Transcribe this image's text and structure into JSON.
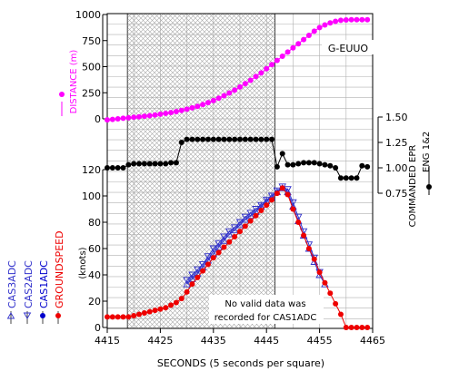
{
  "chart_data": {
    "type": "line",
    "aircraft_label": "G-EUUO",
    "annotation": [
      "No valid data was",
      "recorded for CAS1ADC"
    ],
    "xlabel": "SECONDS (5 seconds per square)",
    "xlim": [
      4415,
      4465
    ],
    "x_ticks": [
      4415,
      4425,
      4435,
      4445,
      4455,
      4465
    ],
    "shaded_interval": [
      4418.8,
      4446.6
    ],
    "legend_order": [
      "CAS3ADC",
      "CAS2ADC",
      "CAS1ADC",
      "GROUNDSPEED"
    ],
    "colors": {
      "distance": "#ff00ff",
      "epr": "#000000",
      "cas3": "#3333cc",
      "cas2": "#3333cc",
      "cas1": "#0000cc",
      "groundspeed": "#ee0000"
    },
    "panels": {
      "distance": {
        "ylabel": "DISTANCE (m)",
        "ylim": [
          0,
          1000
        ],
        "y_ticks": [
          0,
          250,
          500,
          750,
          1000
        ],
        "series": [
          {
            "name": "DISTANCE",
            "x": [
              4415,
              4416,
              4417,
              4418,
              4419,
              4420,
              4421,
              4422,
              4423,
              4424,
              4425,
              4426,
              4427,
              4428,
              4429,
              4430,
              4431,
              4432,
              4433,
              4434,
              4435,
              4436,
              4437,
              4438,
              4439,
              4440,
              4441,
              4442,
              4443,
              4444,
              4445,
              4446,
              4447,
              4448,
              4449,
              4450,
              4451,
              4452,
              4453,
              4454,
              4455,
              4456,
              4457,
              4458,
              4459,
              4460,
              4461,
              4462,
              4463,
              4464
            ],
            "values": [
              -10,
              -5,
              0,
              5,
              10,
              15,
              20,
              25,
              30,
              37,
              45,
              52,
              60,
              70,
              80,
              92,
              105,
              120,
              137,
              155,
              175,
              198,
              222,
              248,
              275,
              305,
              337,
              370,
              405,
              440,
              480,
              520,
              560,
              600,
              640,
              680,
              720,
              760,
              800,
              840,
              875,
              900,
              920,
              935,
              945,
              948,
              950,
              950,
              950,
              950
            ]
          }
        ]
      },
      "epr": {
        "ylabel": "COMMANDED EPR",
        "ylabel2": "ENG 1&2",
        "ylim": [
          0.75,
          1.5
        ],
        "y_ticks": [
          0.75,
          1.0,
          1.25,
          1.5
        ],
        "y_tick_labels": [
          "0.75",
          "1.00",
          "1.25",
          "1.50"
        ],
        "series": [
          {
            "name": "ENG 1&2",
            "x": [
              4415,
              4416,
              4417,
              4418,
              4419,
              4420,
              4421,
              4422,
              4423,
              4424,
              4425,
              4426,
              4427,
              4428,
              4429,
              4430,
              4431,
              4432,
              4433,
              4434,
              4435,
              4436,
              4437,
              4438,
              4439,
              4440,
              4441,
              4442,
              4443,
              4444,
              4445,
              4446,
              4447,
              4448,
              4449,
              4450,
              4451,
              4452,
              4453,
              4454,
              4455,
              4456,
              4457,
              4458,
              4459,
              4460,
              4461,
              4462,
              4463,
              4464
            ],
            "values": [
              1.0,
              1.0,
              1.0,
              1.0,
              1.03,
              1.04,
              1.04,
              1.04,
              1.04,
              1.04,
              1.04,
              1.04,
              1.05,
              1.05,
              1.25,
              1.28,
              1.28,
              1.28,
              1.28,
              1.28,
              1.28,
              1.28,
              1.28,
              1.28,
              1.28,
              1.28,
              1.28,
              1.28,
              1.28,
              1.28,
              1.28,
              1.28,
              1.01,
              1.14,
              1.03,
              1.03,
              1.04,
              1.05,
              1.05,
              1.05,
              1.04,
              1.03,
              1.02,
              1.0,
              0.9,
              0.9,
              0.9,
              0.9,
              1.02,
              1.01
            ]
          }
        ]
      },
      "speed": {
        "ylabel": "(knots)",
        "ylim": [
          0,
          120
        ],
        "y_ticks": [
          0,
          20,
          40,
          60,
          80,
          100,
          120
        ],
        "series": [
          {
            "name": "GROUNDSPEED",
            "x": [
              4415,
              4416,
              4417,
              4418,
              4419,
              4420,
              4421,
              4422,
              4423,
              4424,
              4425,
              4426,
              4427,
              4428,
              4429,
              4430,
              4431,
              4432,
              4433,
              4434,
              4435,
              4436,
              4437,
              4438,
              4439,
              4440,
              4441,
              4442,
              4443,
              4444,
              4445,
              4446,
              4447,
              4448,
              4449,
              4450,
              4451,
              4452,
              4453,
              4454,
              4455,
              4456,
              4457,
              4458,
              4459,
              4460,
              4461,
              4462,
              4463,
              4464
            ],
            "values": [
              8,
              8,
              8,
              8,
              8,
              9,
              10,
              11,
              12,
              13,
              14,
              15,
              17,
              19,
              22,
              27,
              33,
              38,
              43,
              48,
              53,
              57,
              61,
              65,
              69,
              73,
              77,
              81,
              85,
              89,
              93,
              97,
              102,
              106,
              101,
              90,
              80,
              70,
              60,
              52,
              42,
              34,
              26,
              18,
              10,
              0,
              0,
              0,
              0,
              0
            ]
          },
          {
            "name": "CAS2ADC",
            "x": [
              4430,
              4431,
              4432,
              4433,
              4434,
              4435,
              4436,
              4437,
              4438,
              4439,
              4440,
              4441,
              4442,
              4443,
              4444,
              4445,
              4446,
              4447,
              4448,
              4449,
              4450,
              4451,
              4452,
              4453,
              4454,
              4455
            ],
            "values": [
              36,
              40,
              44,
              48,
              54,
              60,
              64,
              69,
              73,
              76,
              80,
              84,
              87,
              90,
              93,
              97,
              100,
              104,
              107,
              105,
              95,
              84,
              73,
              63,
              53,
              42
            ]
          },
          {
            "name": "CAS3ADC",
            "x": [
              4430,
              4431,
              4432,
              4433,
              4434,
              4435,
              4436,
              4437,
              4438,
              4439,
              4440,
              4441,
              4442,
              4443,
              4444,
              4445,
              4446,
              4447,
              4448,
              4449,
              4450,
              4451,
              4452,
              4453,
              4454,
              4455,
              4456
            ],
            "values": [
              33,
              37,
              41,
              46,
              51,
              56,
              61,
              66,
              71,
              74,
              78,
              82,
              85,
              88,
              92,
              96,
              99,
              103,
              106,
              103,
              92,
              81,
              70,
              60,
              50,
              40,
              33
            ]
          }
        ]
      }
    }
  }
}
